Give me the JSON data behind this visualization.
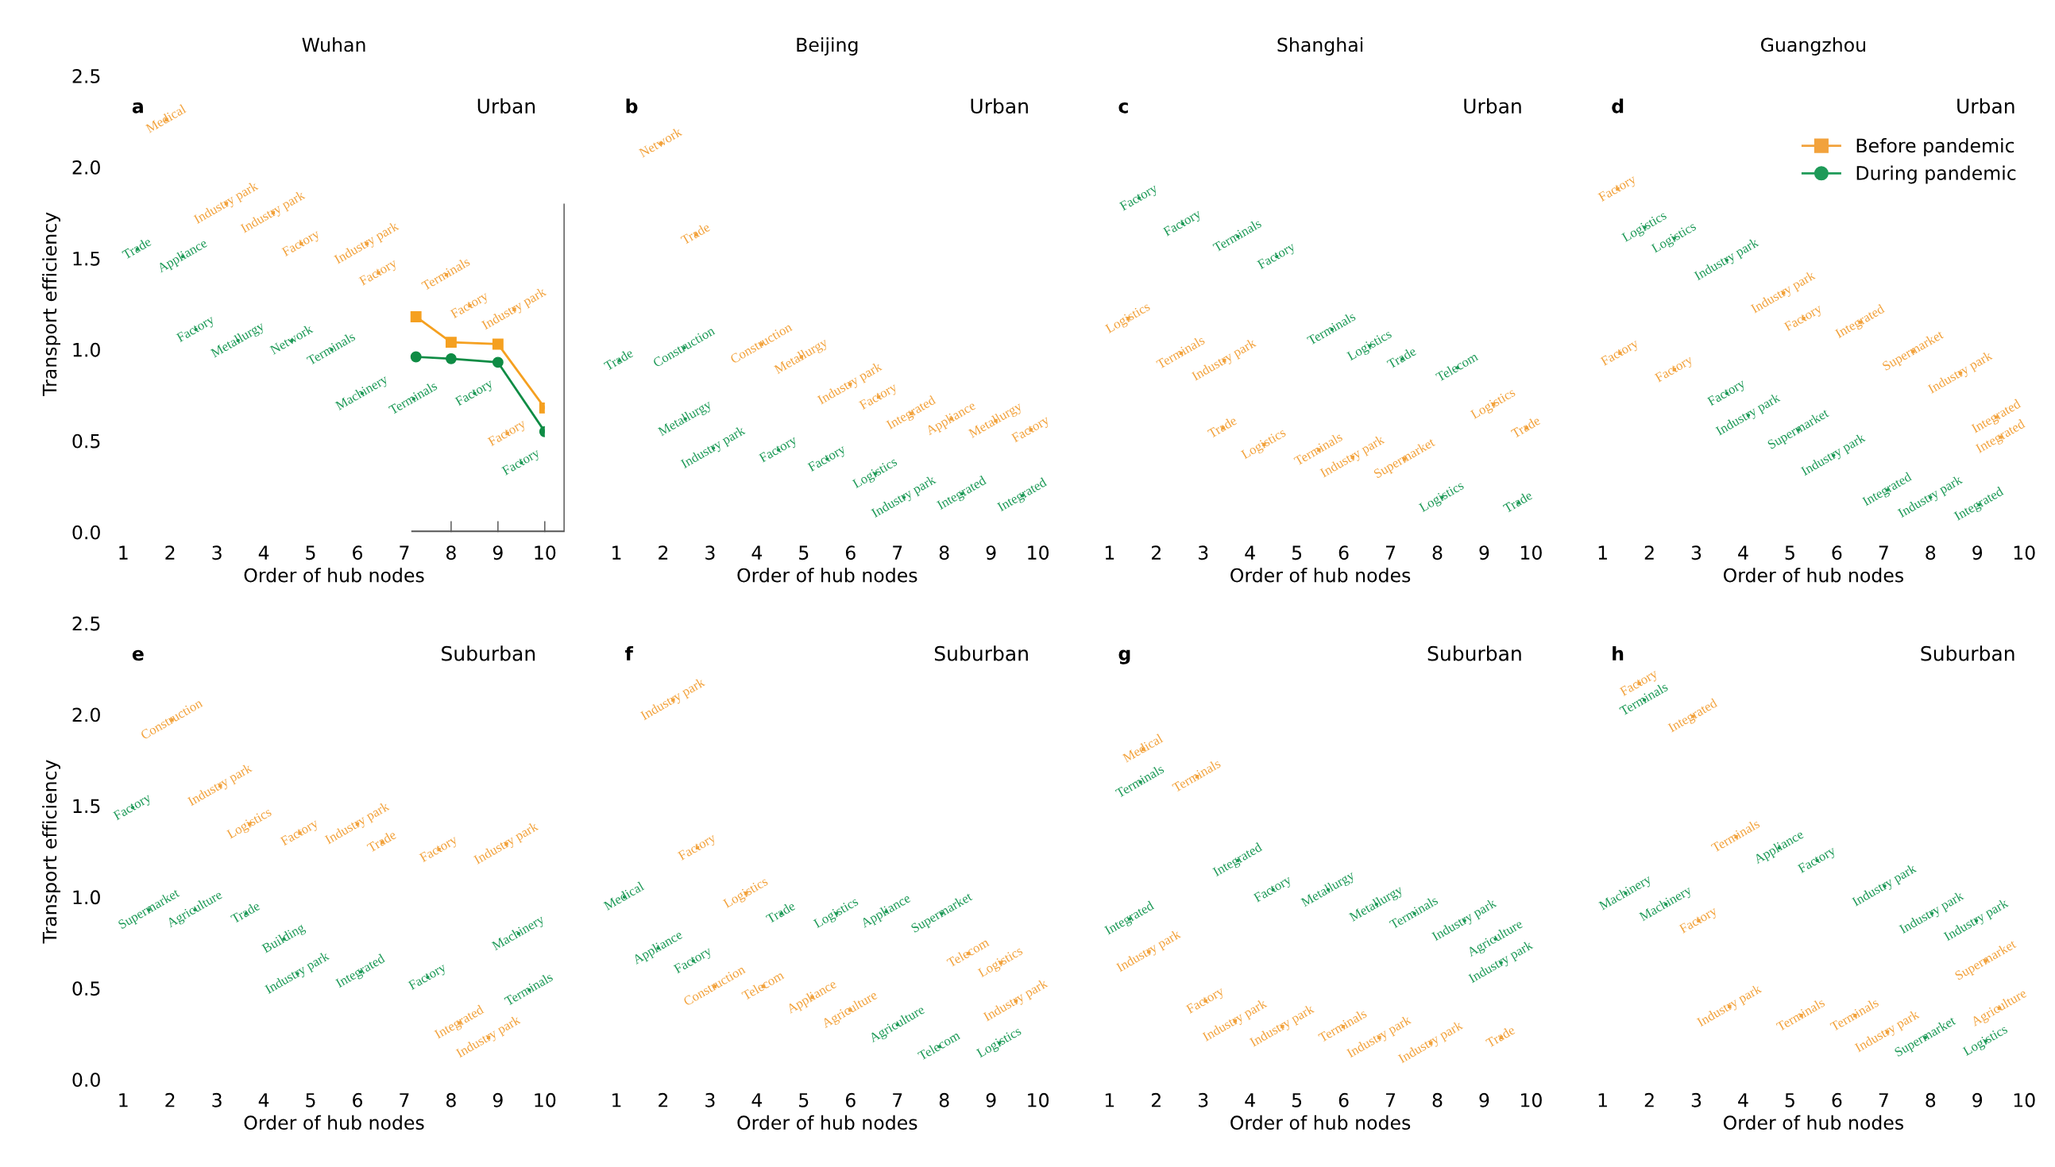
{
  "chart_data": [
    {
      "type": "scatter",
      "title": "Wuhan",
      "xlabel": "Order of hub nodes",
      "ylabel": "Transport efficiency",
      "annotations": [
        "a",
        "Urban"
      ],
      "xlim": [
        1,
        10
      ],
      "xticks": [
        1,
        2,
        3,
        4,
        5,
        6,
        7,
        8,
        9,
        10
      ],
      "ylim": [
        0,
        2.5
      ],
      "yticks": [
        {
          "value": 0,
          "label": "0.0"
        },
        {
          "value": 0.5,
          "label": "0.5"
        },
        {
          "value": 1,
          "label": "1.0"
        },
        {
          "value": 1.5,
          "label": "1.5"
        },
        {
          "value": 2,
          "label": "2.0"
        },
        {
          "value": 2.5,
          "label": "2.5"
        }
      ],
      "series": [
        {
          "marker": "square",
          "color": "#f2a23c",
          "x": [
            1.92,
            3.2,
            4.2,
            4.8,
            6.2,
            6.45,
            7.9,
            8.4,
            9.35,
            9.2
          ],
          "values": [
            2.26,
            1.8,
            1.75,
            1.58,
            1.58,
            1.42,
            1.41,
            1.24,
            1.22,
            0.54
          ],
          "value_labels": [
            "Medical",
            "Industry park",
            "Industry park",
            "Factory",
            "Industry park",
            "Factory",
            "Terminals",
            "Factory",
            "Industry park",
            "Factory"
          ]
        },
        {
          "marker": "circle",
          "color": "#1e9a58",
          "x": [
            1.3,
            2.27,
            2.55,
            3.45,
            4.6,
            5.45,
            6.1,
            7.2,
            8.5,
            9.5
          ],
          "values": [
            1.55,
            1.51,
            1.11,
            1.05,
            1.05,
            1.0,
            0.76,
            0.73,
            0.76,
            0.38
          ],
          "value_labels": [
            "Trade",
            "Appliance",
            "Factory",
            "Metallurgy",
            "Network",
            "Terminals",
            "Machinery",
            "Terminals",
            "Factory",
            "Factory"
          ]
        },
        {
          "type": "line",
          "marker": "square",
          "color": "#f5a020",
          "x": [
            7.25,
            8,
            9,
            10
          ],
          "values": [
            1.18,
            1.04,
            1.03,
            0.68
          ]
        },
        {
          "type": "line",
          "marker": "circle",
          "color": "#0f8c45",
          "x": [
            7.25,
            8,
            9,
            10
          ],
          "values": [
            0.96,
            0.95,
            0.93,
            0.55
          ]
        }
      ]
    },
    {
      "type": "scatter",
      "title": "Beijing",
      "xlabel": "Order of hub nodes",
      "annotations": [
        "b",
        "Urban"
      ],
      "xlim": [
        1,
        10
      ],
      "xticks": [
        1,
        2,
        3,
        4,
        5,
        6,
        7,
        8,
        9,
        10
      ],
      "ylim": [
        0,
        2.5
      ],
      "tick_labels": "x",
      "series": [
        {
          "marker": "square",
          "color": "#f2a23c",
          "x": [
            1.95,
            2.7,
            4.1,
            4.95,
            5.99,
            6.6,
            7.3,
            8.15,
            9.1,
            9.85
          ],
          "values": [
            2.13,
            1.63,
            1.03,
            0.96,
            0.81,
            0.74,
            0.65,
            0.62,
            0.61,
            0.56
          ],
          "value_labels": [
            "Network",
            "Trade",
            "Construction",
            "Metallurgy",
            "Industry park",
            "Factory",
            "Integrated",
            "Appliance",
            "Metallurgy",
            "Factory"
          ]
        },
        {
          "marker": "circle",
          "color": "#1e9a58",
          "x": [
            1.06,
            2.45,
            2.47,
            3.07,
            4.46,
            5.5,
            6.53,
            7.14,
            8.38,
            9.67
          ],
          "values": [
            0.94,
            1.01,
            0.62,
            0.46,
            0.45,
            0.4,
            0.32,
            0.19,
            0.21,
            0.2
          ],
          "value_labels": [
            "Trade",
            "Construction",
            "Metallurgy",
            "Industry park",
            "Factory",
            "Factory",
            "Logistics",
            "Industry park",
            "Integrated",
            "Integrated"
          ]
        }
      ]
    },
    {
      "type": "scatter",
      "title": "Shanghai",
      "xlabel": "Order of hub nodes",
      "annotations": [
        "c",
        "Urban"
      ],
      "xlim": [
        1,
        10
      ],
      "xticks": [
        1,
        2,
        3,
        4,
        5,
        6,
        7,
        8,
        9,
        10
      ],
      "ylim": [
        0,
        2.5
      ],
      "tick_labels": "x",
      "series": [
        {
          "marker": "square",
          "color": "#f2a23c",
          "x": [
            1.4,
            2.53,
            3.45,
            3.42,
            4.3,
            5.47,
            6.19,
            7.3,
            9.2,
            9.9
          ],
          "values": [
            1.17,
            0.98,
            0.94,
            0.57,
            0.48,
            0.45,
            0.41,
            0.4,
            0.7,
            0.57
          ],
          "value_labels": [
            "Logistics",
            "Terminals",
            "Industry park",
            "Trade",
            "Logistics",
            "Terminals",
            "Industry park",
            "Supermarket",
            "Logistics",
            "Trade"
          ]
        },
        {
          "marker": "circle",
          "color": "#1e9a58",
          "x": [
            1.63,
            2.56,
            3.74,
            4.57,
            5.75,
            6.56,
            7.25,
            8.43,
            8.1,
            9.73
          ],
          "values": [
            1.83,
            1.69,
            1.62,
            1.51,
            1.11,
            1.02,
            0.95,
            0.9,
            0.19,
            0.16
          ],
          "value_labels": [
            "Factory",
            "Factory",
            "Terminals",
            "Factory",
            "Terminals",
            "Logistics",
            "Trade",
            "Telecom",
            "Logistics",
            "Trade"
          ]
        }
      ]
    },
    {
      "type": "scatter",
      "title": "Guangzhou",
      "xlabel": "Order of hub nodes",
      "annotations": [
        "d",
        "Urban"
      ],
      "xlim": [
        1,
        10
      ],
      "xticks": [
        1,
        2,
        3,
        4,
        5,
        6,
        7,
        8,
        9,
        10
      ],
      "ylim": [
        0,
        2.5
      ],
      "tick_labels": "x",
      "legend": "top right",
      "series": [
        {
          "name": "Before pandemic",
          "marker": "square",
          "color": "#f2a23c",
          "x": [
            1.32,
            1.37,
            2.53,
            4.86,
            5.29,
            6.5,
            7.63,
            8.64,
            9.41,
            9.5
          ],
          "values": [
            1.88,
            0.98,
            0.89,
            1.31,
            1.17,
            1.15,
            0.99,
            0.87,
            0.63,
            0.52
          ],
          "value_labels": [
            "Factory",
            "Factory",
            "Factory",
            "Industry park",
            "Factory",
            "Integrated",
            "Supermarket",
            "Industry park",
            "Integrated",
            "Integrated"
          ]
        },
        {
          "name": "During pandemic",
          "marker": "circle",
          "color": "#1e9a58",
          "x": [
            1.9,
            2.53,
            3.65,
            3.65,
            4.11,
            5.18,
            5.93,
            7.08,
            8.0,
            9.04
          ],
          "values": [
            1.67,
            1.61,
            1.49,
            0.76,
            0.64,
            0.56,
            0.42,
            0.23,
            0.19,
            0.15
          ],
          "value_labels": [
            "Logistics",
            "Logistics",
            "Industry park",
            "Factory",
            "Industry park",
            "Supermarket",
            "Industry park",
            "Integrated",
            "Industry park",
            "Integrated"
          ]
        }
      ]
    },
    {
      "type": "scatter",
      "xlabel": "Order of hub nodes",
      "ylabel": "Transport efficiency",
      "annotations": [
        "e",
        "Suburban"
      ],
      "xlim": [
        1,
        10
      ],
      "xticks": [
        1,
        2,
        3,
        4,
        5,
        6,
        7,
        8,
        9,
        10
      ],
      "ylim": [
        0,
        2.5
      ],
      "yticks": [
        {
          "value": 0,
          "label": "0.0"
        },
        {
          "value": 0.5,
          "label": "0.5"
        },
        {
          "value": 1,
          "label": "1.0"
        },
        {
          "value": 1.5,
          "label": "1.5"
        },
        {
          "value": 2,
          "label": "2.0"
        },
        {
          "value": 2.5,
          "label": "2.5"
        }
      ],
      "series": [
        {
          "marker": "square",
          "color": "#f2a23c",
          "x": [
            2.04,
            3.07,
            3.7,
            4.77,
            6.0,
            6.53,
            7.74,
            9.18,
            8.18,
            8.8
          ],
          "values": [
            1.97,
            1.61,
            1.4,
            1.35,
            1.4,
            1.3,
            1.26,
            1.29,
            0.31,
            0.23
          ],
          "value_labels": [
            "Construction",
            "Industry park",
            "Logistics",
            "Factory",
            "Industry park",
            "Trade",
            "Factory",
            "Industry park",
            "Integrated",
            "Industry park"
          ]
        },
        {
          "marker": "circle",
          "color": "#1e9a58",
          "x": [
            1.2,
            1.55,
            2.53,
            3.62,
            4.43,
            4.72,
            6.07,
            7.5,
            9.44,
            9.67
          ],
          "values": [
            1.49,
            0.93,
            0.93,
            0.91,
            0.77,
            0.58,
            0.59,
            0.56,
            0.8,
            0.49
          ],
          "value_labels": [
            "Factory",
            "Supermarket",
            "Agriculture",
            "Trade",
            "Building",
            "Industry park",
            "Integrated",
            "Factory",
            "Machinery",
            "Terminals"
          ]
        }
      ]
    },
    {
      "type": "scatter",
      "xlabel": "Order of hub nodes",
      "annotations": [
        "f",
        "Suburban"
      ],
      "xlim": [
        1,
        10
      ],
      "xticks": [
        1,
        2,
        3,
        4,
        5,
        6,
        7,
        8,
        9,
        10
      ],
      "ylim": [
        0,
        2.5
      ],
      "tick_labels": "x",
      "series": [
        {
          "marker": "square",
          "color": "#f2a23c",
          "x": [
            2.21,
            2.73,
            3.77,
            3.1,
            4.14,
            5.18,
            5.99,
            8.52,
            9.21,
            9.53
          ],
          "values": [
            2.08,
            1.27,
            1.02,
            0.51,
            0.51,
            0.45,
            0.38,
            0.69,
            0.64,
            0.43
          ],
          "value_labels": [
            "Industry park",
            "Factory",
            "Logistics",
            "Construction",
            "Telecom",
            "Appliance",
            "Agriculture",
            "Telecom",
            "Logistics",
            "Industry park"
          ]
        },
        {
          "marker": "circle",
          "color": "#1e9a58",
          "x": [
            1.17,
            1.89,
            2.64,
            4.52,
            5.7,
            6.76,
            7.95,
            7.0,
            7.9,
            9.18
          ],
          "values": [
            1.0,
            0.72,
            0.65,
            0.91,
            0.91,
            0.92,
            0.91,
            0.3,
            0.18,
            0.2
          ],
          "value_labels": [
            "Medical",
            "Appliance",
            "Factory",
            "Trade",
            "Logistics",
            "Appliance",
            "Supermarket",
            "Agriculture",
            "Telecom",
            "Logistics"
          ]
        }
      ]
    },
    {
      "type": "scatter",
      "xlabel": "Order of hub nodes",
      "annotations": [
        "g",
        "Suburban"
      ],
      "xlim": [
        1,
        10
      ],
      "xticks": [
        1,
        2,
        3,
        4,
        5,
        6,
        7,
        8,
        9,
        10
      ],
      "ylim": [
        0,
        2.5
      ],
      "tick_labels": "x",
      "series": [
        {
          "marker": "square",
          "color": "#f2a23c",
          "x": [
            1.72,
            2.87,
            1.84,
            3.05,
            3.68,
            4.69,
            5.99,
            6.76,
            7.86,
            9.36
          ],
          "values": [
            1.81,
            1.66,
            0.7,
            0.43,
            0.32,
            0.29,
            0.29,
            0.23,
            0.2,
            0.23
          ],
          "value_labels": [
            "Medical",
            "Terminals",
            "Industry park",
            "Factory",
            "Industry park",
            "Industry park",
            "Terminals",
            "Industry park",
            "Industry park",
            "Trade"
          ]
        },
        {
          "marker": "circle",
          "color": "#1e9a58",
          "x": [
            1.66,
            1.43,
            3.74,
            4.49,
            5.67,
            6.7,
            7.51,
            8.58,
            9.24,
            9.36
          ],
          "values": [
            1.63,
            0.88,
            1.2,
            1.04,
            1.04,
            0.96,
            0.91,
            0.87,
            0.77,
            0.64
          ],
          "value_labels": [
            "Terminals",
            "Integrated",
            "Integrated",
            "Factory",
            "Metallurgy",
            "Metallurgy",
            "Terminals",
            "Industry park",
            "Agriculture",
            "Industry park"
          ]
        }
      ]
    },
    {
      "type": "scatter",
      "xlabel": "Order of hub nodes",
      "annotations": [
        "h",
        "Suburban"
      ],
      "xlim": [
        1,
        10
      ],
      "xticks": [
        1,
        2,
        3,
        4,
        5,
        6,
        7,
        8,
        9,
        10
      ],
      "ylim": [
        0,
        2.5
      ],
      "tick_labels": "x",
      "series": [
        {
          "marker": "square",
          "color": "#f2a23c",
          "x": [
            1.78,
            2.93,
            3.85,
            3.05,
            3.71,
            5.24,
            6.39,
            7.08,
            9.18,
            9.47
          ],
          "values": [
            2.17,
            1.99,
            1.33,
            0.87,
            0.4,
            0.35,
            0.35,
            0.26,
            0.65,
            0.39
          ],
          "value_labels": [
            "Factory",
            "Integrated",
            "Terminals",
            "Factory",
            "Industry park",
            "Terminals",
            "Terminals",
            "Industry park",
            "Supermarket",
            "Agriculture"
          ]
        },
        {
          "marker": "circle",
          "color": "#1e9a58",
          "x": [
            1.89,
            1.49,
            2.35,
            4.77,
            5.58,
            7.02,
            8.03,
            8.98,
            7.89,
            9.18
          ],
          "values": [
            2.08,
            1.02,
            0.96,
            1.27,
            1.2,
            1.06,
            0.91,
            0.87,
            0.23,
            0.21
          ],
          "value_labels": [
            "Terminals",
            "Machinery",
            "Machinery",
            "Appliance",
            "Factory",
            "Industry park",
            "Industry park",
            "Industry park",
            "Supermarket",
            "Logistics"
          ]
        }
      ]
    }
  ]
}
